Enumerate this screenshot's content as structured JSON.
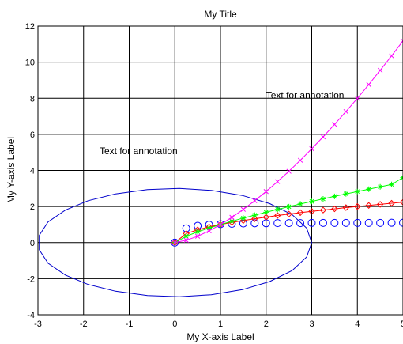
{
  "chart_data": {
    "type": "line",
    "title": "My Title",
    "xlabel": "My X-axis Label",
    "ylabel": "My Y-axis Label",
    "xlim": [
      -3,
      5
    ],
    "ylim": [
      -4,
      12
    ],
    "grid": true,
    "x_ticks": [
      -3,
      -2,
      -1,
      0,
      1,
      2,
      3,
      4,
      5
    ],
    "y_ticks": [
      -4,
      -2,
      0,
      2,
      4,
      6,
      8,
      10,
      12
    ],
    "x_tick_labels": [
      "-3",
      "-2",
      "-1",
      "0",
      "1",
      "2",
      "3",
      "4",
      "5"
    ],
    "y_tick_labels": [
      "-4",
      "-2",
      "0",
      "2",
      "4",
      "6",
      "8",
      "10",
      "12"
    ],
    "annotations": [
      {
        "text": "Text for annotation",
        "x": -1.65,
        "y": 4.9
      },
      {
        "text": "Text for annotation",
        "x": 2.0,
        "y": 8.0
      }
    ],
    "series": [
      {
        "color": "#0000cc",
        "marker": "none",
        "line": "solid",
        "x": [
          3.0,
          2.89,
          2.57,
          2.08,
          1.48,
          0.8,
          0.1,
          -0.6,
          -1.3,
          -1.9,
          -2.4,
          -2.78,
          -2.97,
          -2.97,
          -2.78,
          -2.4,
          -1.9,
          -1.3,
          -0.6,
          0.1,
          0.8,
          1.48,
          2.08,
          2.57,
          2.89,
          3.0
        ],
        "y": [
          0.0,
          0.8,
          1.55,
          2.16,
          2.61,
          2.89,
          3.0,
          2.94,
          2.7,
          2.32,
          1.8,
          1.14,
          0.4,
          -0.4,
          -1.14,
          -1.8,
          -2.32,
          -2.7,
          -2.94,
          -3.0,
          -2.89,
          -2.61,
          -2.16,
          -1.55,
          -0.8,
          0.0
        ]
      },
      {
        "color": "#0000ff",
        "marker": "circle",
        "line": "none",
        "x": [
          0.0,
          0.25,
          0.5,
          0.75,
          1.0,
          1.25,
          1.5,
          1.75,
          2.0,
          2.25,
          2.5,
          2.75,
          3.0,
          3.25,
          3.5,
          3.75,
          4.0,
          4.25,
          4.5,
          4.75,
          5.0
        ],
        "y": [
          0.0,
          0.79,
          0.93,
          0.99,
          1.02,
          1.04,
          1.06,
          1.07,
          1.07,
          1.08,
          1.08,
          1.08,
          1.09,
          1.09,
          1.09,
          1.09,
          1.09,
          1.09,
          1.09,
          1.1,
          1.1
        ]
      },
      {
        "color": "#ff0000",
        "marker": "diamond",
        "line": "solid",
        "x": [
          0.0,
          0.25,
          0.5,
          0.75,
          1.0,
          1.25,
          1.5,
          1.75,
          2.0,
          2.25,
          2.5,
          2.75,
          3.0,
          3.25,
          3.5,
          3.75,
          4.0,
          4.25,
          4.5,
          4.75,
          5.0
        ],
        "y": [
          0.0,
          0.5,
          0.71,
          0.87,
          1.0,
          1.12,
          1.22,
          1.32,
          1.41,
          1.5,
          1.58,
          1.66,
          1.73,
          1.8,
          1.87,
          1.94,
          2.0,
          2.06,
          2.12,
          2.18,
          2.24
        ]
      },
      {
        "color": "#00ff00",
        "marker": "star",
        "line": "solid",
        "x": [
          0.0,
          0.25,
          0.5,
          0.75,
          1.0,
          1.25,
          1.5,
          1.75,
          2.0,
          2.25,
          2.5,
          2.75,
          3.0,
          3.25,
          3.5,
          3.75,
          4.0,
          4.25,
          4.5,
          4.75,
          5.0
        ],
        "y": [
          0.0,
          0.35,
          0.6,
          0.8,
          1.0,
          1.18,
          1.36,
          1.52,
          1.68,
          1.84,
          1.99,
          2.14,
          2.28,
          2.42,
          2.56,
          2.7,
          2.83,
          2.96,
          3.09,
          3.22,
          3.6
        ]
      },
      {
        "color": "#ff00ff",
        "marker": "x",
        "line": "solid",
        "x": [
          0.0,
          0.25,
          0.5,
          0.75,
          1.0,
          1.25,
          1.5,
          1.75,
          2.0,
          2.25,
          2.5,
          2.75,
          3.0,
          3.25,
          3.5,
          3.75,
          4.0,
          4.25,
          4.5,
          4.75,
          5.0
        ],
        "y": [
          0.0,
          0.13,
          0.35,
          0.65,
          1.0,
          1.4,
          1.84,
          2.32,
          2.83,
          3.38,
          3.95,
          4.56,
          5.2,
          5.86,
          6.55,
          7.26,
          8.0,
          8.76,
          9.55,
          10.35,
          11.18
        ]
      }
    ]
  }
}
